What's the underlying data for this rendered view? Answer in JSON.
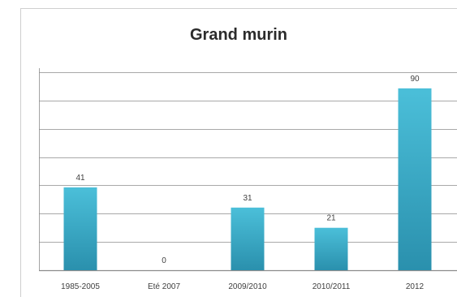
{
  "chart_data": {
    "type": "bar",
    "title": "Grand murin",
    "categories": [
      "1985-2005",
      "Eté 2007",
      "2009/2010",
      "2010/2011",
      "2012"
    ],
    "values": [
      41,
      0,
      31,
      21,
      90
    ],
    "xlabel": "",
    "ylabel": "",
    "ylim": [
      0,
      100
    ],
    "gridlines": true,
    "legend": "none",
    "bar_color_top": "#4bbfd9",
    "bar_color_bottom": "#2a90ad",
    "grid_color": "#8c8c8c"
  }
}
